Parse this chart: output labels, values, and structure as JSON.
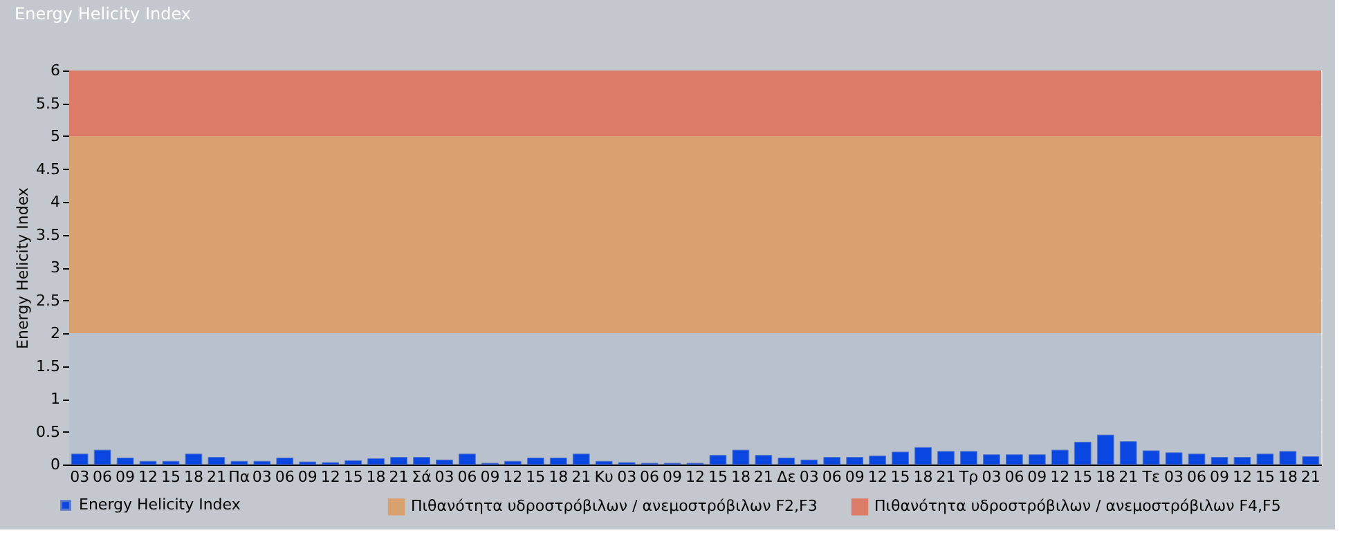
{
  "chart_data": {
    "type": "bar",
    "title": "Energy Helicity Index",
    "ylabel": "Energy Helicity Index",
    "categories": [
      "03",
      "06",
      "09",
      "12",
      "15",
      "18",
      "21",
      "Πα",
      "03",
      "06",
      "09",
      "12",
      "15",
      "18",
      "21",
      "Σά",
      "03",
      "06",
      "09",
      "12",
      "15",
      "18",
      "21",
      "Κυ",
      "03",
      "06",
      "09",
      "12",
      "15",
      "18",
      "21",
      "Δε",
      "03",
      "06",
      "09",
      "12",
      "15",
      "18",
      "21",
      "Τρ",
      "03",
      "06",
      "09",
      "12",
      "15",
      "18",
      "21",
      "Τε",
      "03",
      "06",
      "09",
      "12",
      "15",
      "18",
      "21"
    ],
    "series": [
      {
        "name": "Energy Helicity Index",
        "color": "#0a46e0",
        "values": [
          0.16,
          0.22,
          0.1,
          0.05,
          0.05,
          0.16,
          0.11,
          0.05,
          0.05,
          0.1,
          0.04,
          0.03,
          0.06,
          0.09,
          0.11,
          0.11,
          0.07,
          0.16,
          0.02,
          0.05,
          0.1,
          0.1,
          0.16,
          0.05,
          0.03,
          0.02,
          0.02,
          0.02,
          0.14,
          0.22,
          0.14,
          0.1,
          0.07,
          0.11,
          0.11,
          0.13,
          0.19,
          0.26,
          0.2,
          0.2,
          0.15,
          0.15,
          0.15,
          0.22,
          0.34,
          0.45,
          0.35,
          0.21,
          0.18,
          0.16,
          0.11,
          0.11,
          0.16,
          0.2,
          0.12
        ]
      }
    ],
    "ylim": [
      0,
      6
    ],
    "yticks": [
      0,
      0.5,
      1,
      1.5,
      2,
      2.5,
      3,
      3.5,
      4,
      4.5,
      5,
      5.5,
      6
    ],
    "bands": [
      {
        "axis": "y",
        "from": 0,
        "to": 2,
        "color": "#b9c2cc"
      },
      {
        "axis": "y",
        "from": 2,
        "to": 5,
        "color": "#d9a070",
        "label": "Πιθανότητα υδροστρόβιλων / ανεμοστρόβιλων F2,F3"
      },
      {
        "axis": "y",
        "from": 5,
        "to": 6,
        "color": "#dc7c68",
        "label": "Πιθανότητα υδροστρόβιλων / ανεμοστρόβιλων F4,F5"
      }
    ],
    "grid": true,
    "legend": "bottom left"
  }
}
